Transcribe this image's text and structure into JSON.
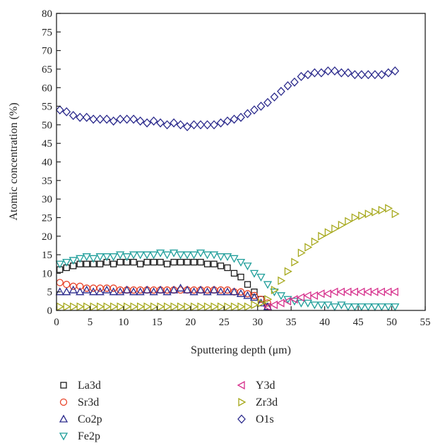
{
  "chart_data": {
    "type": "scatter",
    "xlabel": "Sputtering depth (μm)",
    "ylabel": "Atomic concentration (%)",
    "xlim": [
      0,
      55
    ],
    "ylim": [
      0,
      80
    ],
    "xticks": [
      "0",
      "5",
      "10",
      "15",
      "20",
      "25",
      "30",
      "35",
      "40",
      "45",
      "50",
      "55"
    ],
    "yticks": [
      "0",
      "5",
      "10",
      "15",
      "20",
      "25",
      "30",
      "35",
      "40",
      "45",
      "50",
      "55",
      "60",
      "65",
      "70",
      "75",
      "80"
    ],
    "grid": false,
    "legend_position": "bottom",
    "series": [
      {
        "name": "La3d",
        "marker": "square",
        "color": "#1a1a1a",
        "x": [
          0.5,
          1.5,
          2.5,
          3.5,
          4.5,
          5.5,
          6.5,
          7.5,
          8.5,
          9.5,
          10.5,
          11.5,
          12.5,
          13.5,
          14.5,
          15.5,
          16.5,
          17.5,
          18.5,
          19.5,
          20.5,
          21.5,
          22.5,
          23.5,
          24.5,
          25.5,
          26.5,
          27.5,
          28.5,
          29.5,
          30.5,
          31.5
        ],
        "y": [
          11,
          11.5,
          12,
          12.5,
          12.5,
          12.5,
          12.5,
          13,
          12.5,
          13,
          13,
          13,
          12.5,
          13,
          13,
          13,
          12.5,
          13,
          13,
          13,
          13,
          13,
          12.5,
          12.5,
          12,
          11.5,
          10,
          9,
          7,
          5,
          3,
          1
        ]
      },
      {
        "name": "Sr3d",
        "marker": "circle",
        "color": "#e8442a",
        "x": [
          0.5,
          1.5,
          2.5,
          3.5,
          4.5,
          5.5,
          6.5,
          7.5,
          8.5,
          9.5,
          10.5,
          11.5,
          12.5,
          13.5,
          14.5,
          15.5,
          16.5,
          17.5,
          18.5,
          19.5,
          20.5,
          21.5,
          22.5,
          23.5,
          24.5,
          25.5,
          26.5,
          27.5,
          28.5,
          29.5,
          30.5,
          31.5
        ],
        "y": [
          7.5,
          7,
          6.5,
          6.5,
          6,
          6,
          6,
          6,
          6,
          5.5,
          5.5,
          5.5,
          5.5,
          5.5,
          5.5,
          5.5,
          5.5,
          5.5,
          5.5,
          5.5,
          5.5,
          5.5,
          5.5,
          5.5,
          5.5,
          5.5,
          5,
          5,
          4.5,
          4,
          3,
          2
        ]
      },
      {
        "name": "Co2p",
        "marker": "triangle-up",
        "color": "#2b2a8c",
        "x": [
          0.5,
          1.5,
          2.5,
          3.5,
          4.5,
          5.5,
          6.5,
          7.5,
          8.5,
          9.5,
          10.5,
          11.5,
          12.5,
          13.5,
          14.5,
          15.5,
          16.5,
          17.5,
          18.5,
          19.5,
          20.5,
          21.5,
          22.5,
          23.5,
          24.5,
          25.5,
          26.5,
          27.5,
          28.5,
          29.5,
          30.5,
          31.5
        ],
        "y": [
          5,
          5,
          5.5,
          5,
          5.5,
          5,
          5,
          5.5,
          5,
          5,
          5.5,
          5,
          5,
          5.5,
          5,
          5.5,
          5,
          5.5,
          6,
          5.5,
          5,
          5.5,
          5,
          5.5,
          5,
          5,
          5,
          4.5,
          4,
          3.5,
          2,
          1
        ]
      },
      {
        "name": "Fe2p",
        "marker": "triangle-down",
        "color": "#1f9e9a",
        "x": [
          0.5,
          1.5,
          2.5,
          3.5,
          4.5,
          5.5,
          6.5,
          7.5,
          8.5,
          9.5,
          10.5,
          11.5,
          12.5,
          13.5,
          14.5,
          15.5,
          16.5,
          17.5,
          18.5,
          19.5,
          20.5,
          21.5,
          22.5,
          23.5,
          24.5,
          25.5,
          26.5,
          27.5,
          28.5,
          29.5,
          30.5,
          31.5,
          32.5,
          33.5,
          34.5,
          35.5,
          36.5,
          37.5,
          38.5,
          39.5,
          40.5,
          41.5,
          42.5,
          43.5,
          44.5,
          45.5,
          46.5,
          47.5,
          48.5,
          49.5,
          50.5
        ],
        "y": [
          12.5,
          13,
          13.5,
          14,
          14.5,
          14,
          14.5,
          14.5,
          14.5,
          15,
          14.5,
          15,
          15,
          15,
          15,
          15.5,
          15,
          15.5,
          15,
          15,
          15,
          15.5,
          15,
          15,
          14.5,
          14.5,
          14,
          13,
          12,
          10,
          9,
          7,
          5,
          4,
          3,
          2.5,
          2,
          2,
          1.5,
          1.5,
          1.5,
          1,
          1.5,
          1,
          1,
          1,
          1,
          1,
          1,
          1,
          1
        ]
      },
      {
        "name": "Y3d",
        "marker": "triangle-left",
        "color": "#d6308c",
        "x": [
          31.5,
          32.5,
          33.5,
          34.5,
          35.5,
          36.5,
          37.5,
          38.5,
          39.5,
          40.5,
          41.5,
          42.5,
          43.5,
          44.5,
          45.5,
          46.5,
          47.5,
          48.5,
          49.5,
          50.5
        ],
        "y": [
          1,
          1.5,
          2,
          2.5,
          3,
          3.5,
          4,
          4,
          4.5,
          4.5,
          5,
          5,
          5,
          5,
          5,
          5,
          5,
          5,
          5,
          5
        ]
      },
      {
        "name": "Zr3d",
        "marker": "triangle-right",
        "color": "#a6a81b",
        "x": [
          0.5,
          1.5,
          2.5,
          3.5,
          4.5,
          5.5,
          6.5,
          7.5,
          8.5,
          9.5,
          10.5,
          11.5,
          12.5,
          13.5,
          14.5,
          15.5,
          16.5,
          17.5,
          18.5,
          19.5,
          20.5,
          21.5,
          22.5,
          23.5,
          24.5,
          25.5,
          26.5,
          27.5,
          28.5,
          29.5,
          30.5,
          31.5,
          32.5,
          33.5,
          34.5,
          35.5,
          36.5,
          37.5,
          38.5,
          39.5,
          40.5,
          41.5,
          42.5,
          43.5,
          44.5,
          45.5,
          46.5,
          47.5,
          48.5,
          49.5,
          50.5
        ],
        "y": [
          1,
          1,
          1,
          1,
          1,
          1,
          1,
          1,
          1,
          1,
          1,
          1,
          1,
          1,
          1,
          1,
          1,
          1,
          1,
          1,
          1,
          1,
          1,
          1,
          1,
          1,
          1,
          1,
          1,
          1.5,
          2,
          3,
          5.5,
          8,
          10.5,
          13,
          15.5,
          17,
          18.5,
          20,
          21,
          22,
          23,
          24,
          25,
          25.5,
          26,
          26.5,
          27,
          27.5,
          26
        ]
      },
      {
        "name": "O1s",
        "marker": "diamond",
        "color": "#2b2a8c",
        "x": [
          0.5,
          1.5,
          2.5,
          3.5,
          4.5,
          5.5,
          6.5,
          7.5,
          8.5,
          9.5,
          10.5,
          11.5,
          12.5,
          13.5,
          14.5,
          15.5,
          16.5,
          17.5,
          18.5,
          19.5,
          20.5,
          21.5,
          22.5,
          23.5,
          24.5,
          25.5,
          26.5,
          27.5,
          28.5,
          29.5,
          30.5,
          31.5,
          32.5,
          33.5,
          34.5,
          35.5,
          36.5,
          37.5,
          38.5,
          39.5,
          40.5,
          41.5,
          42.5,
          43.5,
          44.5,
          45.5,
          46.5,
          47.5,
          48.5,
          49.5,
          50.5
        ],
        "y": [
          54,
          53.5,
          52.5,
          52,
          52,
          51.5,
          51.5,
          51.5,
          51,
          51.5,
          51.5,
          51.5,
          51,
          50.5,
          51,
          50.5,
          50,
          50.5,
          50,
          49.5,
          50,
          50,
          50,
          50,
          50.5,
          51,
          51.5,
          52,
          53,
          54,
          55,
          56,
          57.5,
          59,
          60.5,
          61.5,
          63,
          63.5,
          64,
          64,
          64.5,
          64.5,
          64,
          64,
          63.5,
          63.5,
          63.5,
          63.5,
          63.5,
          64,
          64.5
        ]
      }
    ]
  }
}
